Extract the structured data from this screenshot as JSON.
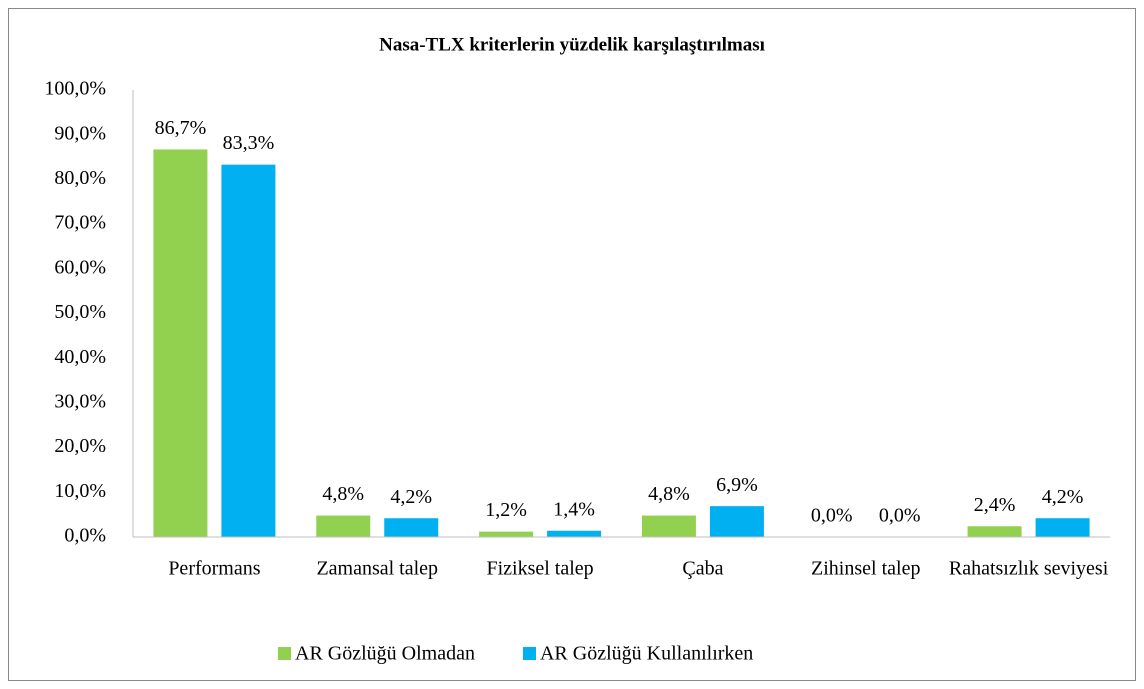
{
  "chart_data": {
    "type": "bar",
    "title": "Nasa-TLX kriterlerin yüzdelik karşılaştırılması",
    "categories": [
      "Performans",
      "Zamansal talep",
      "Fiziksel talep",
      "Çaba",
      "Zihinsel talep",
      "Rahatsızlık seviyesi"
    ],
    "series": [
      {
        "name": "AR Gözlüğü Olmadan",
        "color": "#92d050",
        "values": [
          86.7,
          4.8,
          1.2,
          4.8,
          0.0,
          2.4
        ],
        "value_labels": [
          "86,7%",
          "4,8%",
          "1,2%",
          "4,8%",
          "0,0%",
          "2,4%"
        ]
      },
      {
        "name": "AR Gözlüğü Kullanılırken",
        "color": "#00b0f0",
        "values": [
          83.3,
          4.2,
          1.4,
          6.9,
          0.0,
          4.2
        ],
        "value_labels": [
          "83,3%",
          "4,2%",
          "1,4%",
          "6,9%",
          "0,0%",
          "4,2%"
        ]
      }
    ],
    "ylim": [
      0,
      100
    ],
    "yticks": [
      {
        "value": 0,
        "label": "0,0%"
      },
      {
        "value": 10,
        "label": "10,0%"
      },
      {
        "value": 20,
        "label": "20,0%"
      },
      {
        "value": 30,
        "label": "30,0%"
      },
      {
        "value": 40,
        "label": "40,0%"
      },
      {
        "value": 50,
        "label": "50,0%"
      },
      {
        "value": 60,
        "label": "60,0%"
      },
      {
        "value": 70,
        "label": "70,0%"
      },
      {
        "value": 80,
        "label": "80,0%"
      },
      {
        "value": 90,
        "label": "90,0%"
      },
      {
        "value": 100,
        "label": "100,0%"
      }
    ],
    "grid": false,
    "legend": "bottom"
  }
}
